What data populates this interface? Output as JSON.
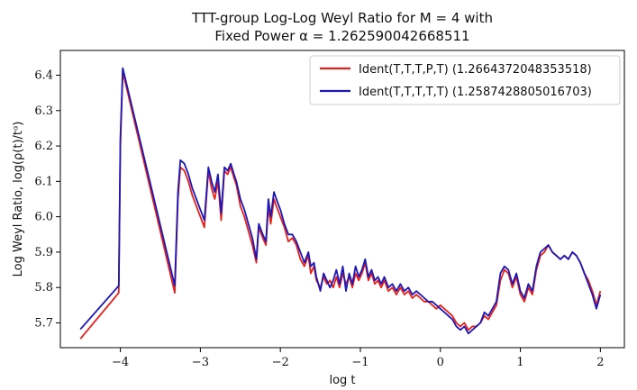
{
  "chart_data": {
    "type": "line",
    "title": {
      "line1": "TTT-group Log-Log Weyl Ratio for M = 4 with",
      "line2": "Fixed Power α = 1.262590042668511"
    },
    "xlabel": "log t",
    "ylabel": "Log Weyl Ratio, log(ρ(t)/tᵅ)",
    "xlim": [
      -4.75,
      2.3
    ],
    "ylim": [
      5.63,
      6.47
    ],
    "xticks": [
      -4,
      -3,
      -2,
      -1,
      0,
      1,
      2
    ],
    "xtick_labels": [
      "−4",
      "−3",
      "−2",
      "−1",
      "0",
      "1",
      "2"
    ],
    "yticks": [
      5.7,
      5.8,
      5.9,
      6.0,
      6.1,
      6.2,
      6.3,
      6.4
    ],
    "ytick_labels": [
      "5.7",
      "5.8",
      "5.9",
      "6.0",
      "6.1",
      "6.2",
      "6.3",
      "6.4"
    ],
    "grid": false,
    "legend_position": "top-right",
    "series": [
      {
        "name": "Ident(T,T,T,P,T) (1.2664372048353518)",
        "color": "#e8211b",
        "points": [
          [
            -4.5,
            5.655
          ],
          [
            -4.02,
            5.785
          ],
          [
            -4.0,
            6.2
          ],
          [
            -3.97,
            6.41
          ],
          [
            -3.32,
            5.785
          ],
          [
            -3.28,
            6.05
          ],
          [
            -3.25,
            6.14
          ],
          [
            -3.2,
            6.13
          ],
          [
            -3.15,
            6.1
          ],
          [
            -3.1,
            6.06
          ],
          [
            -3.05,
            6.03
          ],
          [
            -3.0,
            6.0
          ],
          [
            -2.95,
            5.97
          ],
          [
            -2.9,
            6.13
          ],
          [
            -2.86,
            6.08
          ],
          [
            -2.82,
            6.05
          ],
          [
            -2.78,
            6.1
          ],
          [
            -2.74,
            5.99
          ],
          [
            -2.7,
            6.13
          ],
          [
            -2.66,
            6.12
          ],
          [
            -2.62,
            6.14
          ],
          [
            -2.58,
            6.11
          ],
          [
            -2.55,
            6.09
          ],
          [
            -2.5,
            6.03
          ],
          [
            -2.45,
            6.0
          ],
          [
            -2.4,
            5.96
          ],
          [
            -2.35,
            5.92
          ],
          [
            -2.3,
            5.87
          ],
          [
            -2.27,
            5.97
          ],
          [
            -2.22,
            5.94
          ],
          [
            -2.18,
            5.92
          ],
          [
            -2.15,
            6.03
          ],
          [
            -2.12,
            5.98
          ],
          [
            -2.08,
            6.05
          ],
          [
            -2.05,
            6.03
          ],
          [
            -2.0,
            6.0
          ],
          [
            -1.95,
            5.97
          ],
          [
            -1.9,
            5.93
          ],
          [
            -1.85,
            5.94
          ],
          [
            -1.8,
            5.92
          ],
          [
            -1.75,
            5.88
          ],
          [
            -1.7,
            5.86
          ],
          [
            -1.65,
            5.89
          ],
          [
            -1.62,
            5.84
          ],
          [
            -1.58,
            5.86
          ],
          [
            -1.55,
            5.82
          ],
          [
            -1.5,
            5.8
          ],
          [
            -1.46,
            5.83
          ],
          [
            -1.42,
            5.81
          ],
          [
            -1.38,
            5.82
          ],
          [
            -1.34,
            5.8
          ],
          [
            -1.3,
            5.83
          ],
          [
            -1.26,
            5.8
          ],
          [
            -1.22,
            5.84
          ],
          [
            -1.18,
            5.81
          ],
          [
            -1.14,
            5.83
          ],
          [
            -1.1,
            5.8
          ],
          [
            -1.06,
            5.84
          ],
          [
            -1.02,
            5.82
          ],
          [
            -0.98,
            5.84
          ],
          [
            -0.94,
            5.87
          ],
          [
            -0.9,
            5.82
          ],
          [
            -0.86,
            5.84
          ],
          [
            -0.82,
            5.81
          ],
          [
            -0.78,
            5.82
          ],
          [
            -0.74,
            5.8
          ],
          [
            -0.7,
            5.82
          ],
          [
            -0.65,
            5.79
          ],
          [
            -0.6,
            5.8
          ],
          [
            -0.55,
            5.78
          ],
          [
            -0.5,
            5.8
          ],
          [
            -0.45,
            5.78
          ],
          [
            -0.4,
            5.79
          ],
          [
            -0.35,
            5.77
          ],
          [
            -0.3,
            5.78
          ],
          [
            -0.25,
            5.77
          ],
          [
            -0.2,
            5.76
          ],
          [
            -0.15,
            5.76
          ],
          [
            -0.1,
            5.75
          ],
          [
            -0.05,
            5.74
          ],
          [
            0.0,
            5.75
          ],
          [
            0.05,
            5.74
          ],
          [
            0.1,
            5.73
          ],
          [
            0.15,
            5.72
          ],
          [
            0.2,
            5.7
          ],
          [
            0.25,
            5.69
          ],
          [
            0.3,
            5.7
          ],
          [
            0.35,
            5.68
          ],
          [
            0.4,
            5.69
          ],
          [
            0.45,
            5.69
          ],
          [
            0.5,
            5.7
          ],
          [
            0.55,
            5.72
          ],
          [
            0.6,
            5.71
          ],
          [
            0.65,
            5.73
          ],
          [
            0.7,
            5.75
          ],
          [
            0.75,
            5.82
          ],
          [
            0.8,
            5.85
          ],
          [
            0.85,
            5.84
          ],
          [
            0.9,
            5.8
          ],
          [
            0.95,
            5.83
          ],
          [
            1.0,
            5.78
          ],
          [
            1.05,
            5.76
          ],
          [
            1.1,
            5.8
          ],
          [
            1.15,
            5.78
          ],
          [
            1.2,
            5.85
          ],
          [
            1.25,
            5.89
          ],
          [
            1.3,
            5.9
          ],
          [
            1.35,
            5.92
          ],
          [
            1.4,
            5.9
          ],
          [
            1.45,
            5.89
          ],
          [
            1.5,
            5.88
          ],
          [
            1.55,
            5.89
          ],
          [
            1.6,
            5.88
          ],
          [
            1.65,
            5.9
          ],
          [
            1.7,
            5.89
          ],
          [
            1.75,
            5.87
          ],
          [
            1.8,
            5.84
          ],
          [
            1.85,
            5.82
          ],
          [
            1.9,
            5.79
          ],
          [
            1.95,
            5.75
          ],
          [
            2.0,
            5.79
          ]
        ]
      },
      {
        "name": "Ident(T,T,T,T,T) (1.2587428805016703)",
        "color": "#1c18b8",
        "points": [
          [
            -4.5,
            5.682
          ],
          [
            -4.02,
            5.805
          ],
          [
            -4.0,
            6.22
          ],
          [
            -3.97,
            6.42
          ],
          [
            -3.32,
            5.805
          ],
          [
            -3.28,
            6.07
          ],
          [
            -3.25,
            6.16
          ],
          [
            -3.2,
            6.15
          ],
          [
            -3.15,
            6.12
          ],
          [
            -3.1,
            6.08
          ],
          [
            -3.05,
            6.05
          ],
          [
            -3.0,
            6.02
          ],
          [
            -2.95,
            5.99
          ],
          [
            -2.9,
            6.14
          ],
          [
            -2.86,
            6.1
          ],
          [
            -2.82,
            6.07
          ],
          [
            -2.78,
            6.12
          ],
          [
            -2.74,
            6.01
          ],
          [
            -2.7,
            6.14
          ],
          [
            -2.66,
            6.13
          ],
          [
            -2.62,
            6.15
          ],
          [
            -2.58,
            6.12
          ],
          [
            -2.55,
            6.1
          ],
          [
            -2.5,
            6.05
          ],
          [
            -2.45,
            6.02
          ],
          [
            -2.4,
            5.98
          ],
          [
            -2.35,
            5.94
          ],
          [
            -2.3,
            5.88
          ],
          [
            -2.27,
            5.98
          ],
          [
            -2.22,
            5.95
          ],
          [
            -2.18,
            5.93
          ],
          [
            -2.15,
            6.05
          ],
          [
            -2.12,
            6.0
          ],
          [
            -2.08,
            6.07
          ],
          [
            -2.05,
            6.05
          ],
          [
            -2.0,
            6.02
          ],
          [
            -1.95,
            5.98
          ],
          [
            -1.9,
            5.95
          ],
          [
            -1.85,
            5.95
          ],
          [
            -1.8,
            5.93
          ],
          [
            -1.75,
            5.9
          ],
          [
            -1.7,
            5.87
          ],
          [
            -1.65,
            5.9
          ],
          [
            -1.62,
            5.86
          ],
          [
            -1.58,
            5.87
          ],
          [
            -1.55,
            5.83
          ],
          [
            -1.5,
            5.79
          ],
          [
            -1.46,
            5.84
          ],
          [
            -1.42,
            5.82
          ],
          [
            -1.38,
            5.8
          ],
          [
            -1.34,
            5.82
          ],
          [
            -1.3,
            5.85
          ],
          [
            -1.26,
            5.81
          ],
          [
            -1.22,
            5.86
          ],
          [
            -1.18,
            5.79
          ],
          [
            -1.14,
            5.84
          ],
          [
            -1.1,
            5.81
          ],
          [
            -1.06,
            5.86
          ],
          [
            -1.02,
            5.83
          ],
          [
            -0.98,
            5.85
          ],
          [
            -0.94,
            5.88
          ],
          [
            -0.9,
            5.83
          ],
          [
            -0.86,
            5.85
          ],
          [
            -0.82,
            5.82
          ],
          [
            -0.78,
            5.83
          ],
          [
            -0.74,
            5.81
          ],
          [
            -0.7,
            5.83
          ],
          [
            -0.65,
            5.8
          ],
          [
            -0.6,
            5.81
          ],
          [
            -0.55,
            5.79
          ],
          [
            -0.5,
            5.81
          ],
          [
            -0.45,
            5.79
          ],
          [
            -0.4,
            5.8
          ],
          [
            -0.35,
            5.78
          ],
          [
            -0.3,
            5.79
          ],
          [
            -0.25,
            5.78
          ],
          [
            -0.2,
            5.77
          ],
          [
            -0.15,
            5.76
          ],
          [
            -0.1,
            5.76
          ],
          [
            -0.05,
            5.75
          ],
          [
            0.0,
            5.74
          ],
          [
            0.05,
            5.73
          ],
          [
            0.1,
            5.72
          ],
          [
            0.15,
            5.71
          ],
          [
            0.2,
            5.69
          ],
          [
            0.25,
            5.68
          ],
          [
            0.3,
            5.69
          ],
          [
            0.35,
            5.67
          ],
          [
            0.4,
            5.68
          ],
          [
            0.45,
            5.69
          ],
          [
            0.5,
            5.7
          ],
          [
            0.55,
            5.73
          ],
          [
            0.6,
            5.72
          ],
          [
            0.65,
            5.74
          ],
          [
            0.7,
            5.76
          ],
          [
            0.75,
            5.84
          ],
          [
            0.8,
            5.86
          ],
          [
            0.85,
            5.85
          ],
          [
            0.9,
            5.81
          ],
          [
            0.95,
            5.84
          ],
          [
            1.0,
            5.79
          ],
          [
            1.05,
            5.77
          ],
          [
            1.1,
            5.81
          ],
          [
            1.15,
            5.79
          ],
          [
            1.2,
            5.86
          ],
          [
            1.25,
            5.9
          ],
          [
            1.3,
            5.91
          ],
          [
            1.35,
            5.92
          ],
          [
            1.4,
            5.9
          ],
          [
            1.45,
            5.89
          ],
          [
            1.5,
            5.88
          ],
          [
            1.55,
            5.89
          ],
          [
            1.6,
            5.88
          ],
          [
            1.65,
            5.9
          ],
          [
            1.7,
            5.89
          ],
          [
            1.75,
            5.87
          ],
          [
            1.8,
            5.84
          ],
          [
            1.85,
            5.81
          ],
          [
            1.9,
            5.78
          ],
          [
            1.95,
            5.74
          ],
          [
            2.0,
            5.78
          ]
        ]
      }
    ]
  }
}
